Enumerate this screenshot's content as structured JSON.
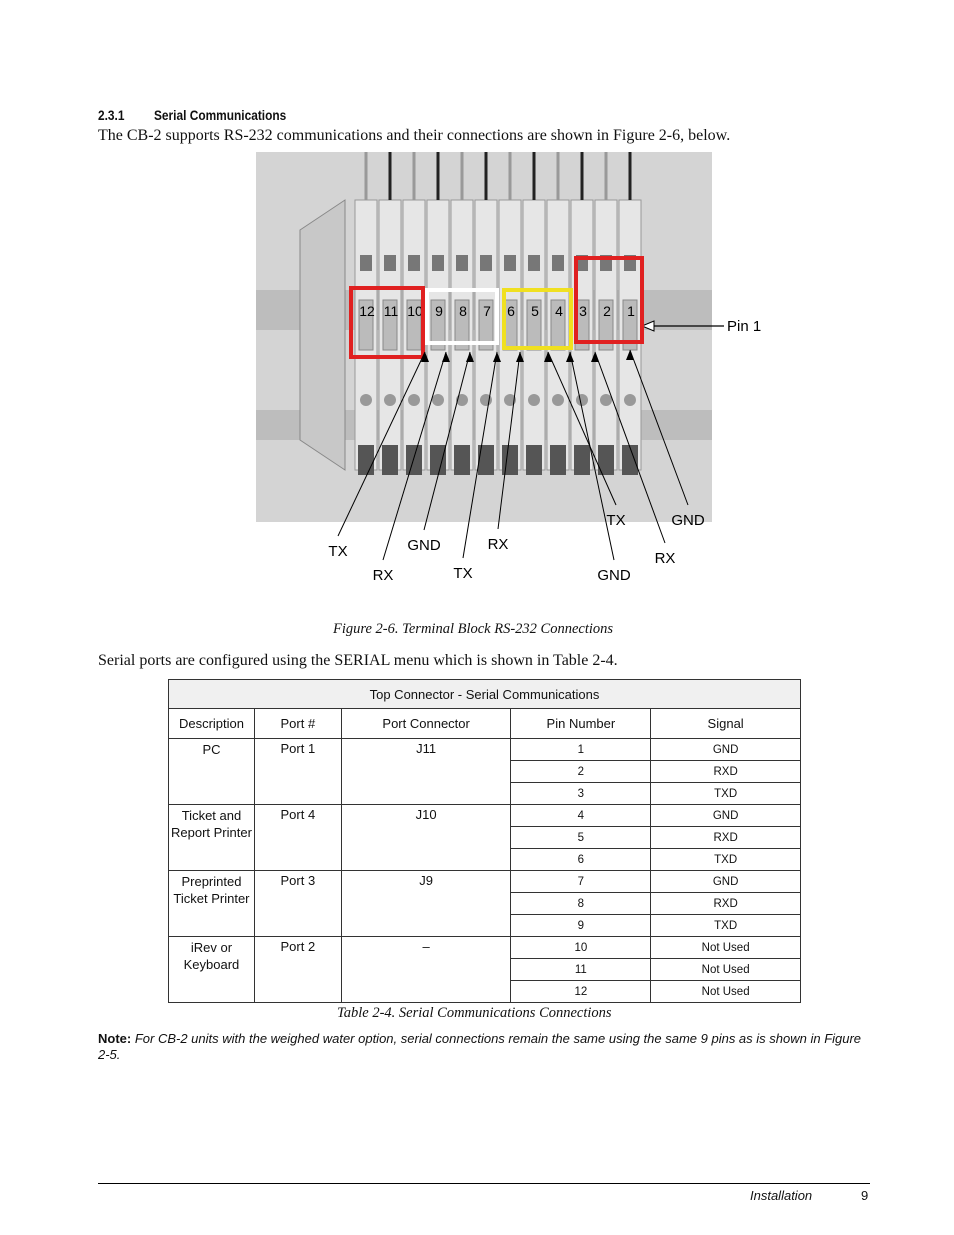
{
  "section": {
    "number": "2.3.1",
    "title": "Serial Communications"
  },
  "intro": "The CB-2 supports RS-232 communications and their connections are shown in Figure 2-6, below.",
  "figure": {
    "pin_numbers": [
      "12",
      "11",
      "10",
      "9",
      "8",
      "7",
      "6",
      "5",
      "4",
      "3",
      "2",
      "1"
    ],
    "pin1_label": "Pin 1",
    "callouts": [
      "TX",
      "RX",
      "GND",
      "TX",
      "RX",
      "TX",
      "GND",
      "RX",
      "GND"
    ],
    "caption": "Figure 2-6. Terminal Block RS-232 Connections"
  },
  "paragraph": "Serial ports are configured using the SERIAL menu which is shown in Table 2-4.",
  "table": {
    "title": "Top Connector - Serial Communications",
    "headers": [
      "Description",
      "Port #",
      "Port Connector",
      "Pin Number",
      "Signal"
    ],
    "groups": [
      {
        "description": "PC",
        "port": "Port 1",
        "connector": "J11",
        "pins": [
          [
            1,
            "GND"
          ],
          [
            2,
            "RXD"
          ],
          [
            3,
            "TXD"
          ]
        ]
      },
      {
        "description": "Ticket and Report Printer",
        "port": "Port 4",
        "connector": "J10",
        "pins": [
          [
            4,
            "GND"
          ],
          [
            5,
            "RXD"
          ],
          [
            6,
            "TXD"
          ]
        ]
      },
      {
        "description": "Preprinted Ticket Printer",
        "port": "Port 3",
        "connector": "J9",
        "pins": [
          [
            7,
            "GND"
          ],
          [
            8,
            "RXD"
          ],
          [
            9,
            "TXD"
          ]
        ]
      },
      {
        "description": "iRev or Keyboard",
        "port": "Port 2",
        "connector": "–",
        "pins": [
          [
            10,
            "Not Used"
          ],
          [
            11,
            "Not Used"
          ],
          [
            12,
            "Not Used"
          ]
        ]
      }
    ]
  },
  "table_caption": "Table 2-4. Serial Communications Connections",
  "note": {
    "label": "Note:",
    "text": "For CB-2 units with the weighed water option, serial connections remain the same using the same 9 pins as is shown in Figure 2-5."
  },
  "footer": {
    "section": "Installation",
    "page": "9"
  }
}
